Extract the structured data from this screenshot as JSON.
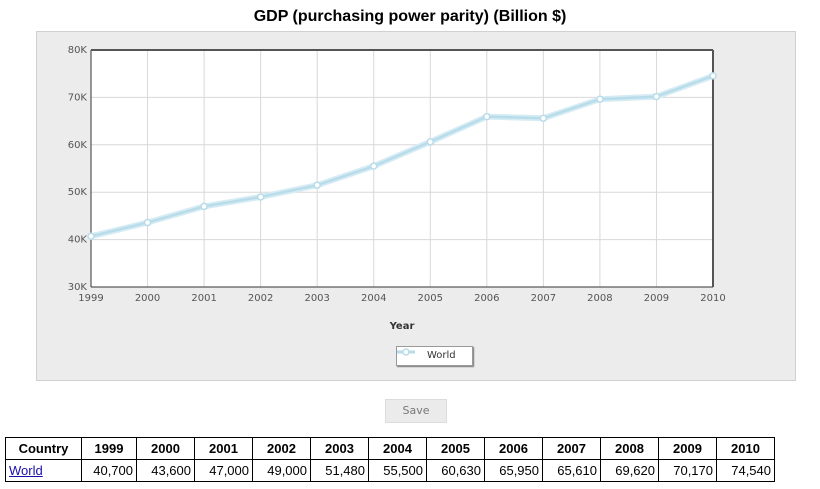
{
  "chart_title": "GDP (purchasing power parity) (Billion $)",
  "colors": {
    "series_line": "#b9dcea",
    "panel_bg": "#ececec",
    "link": "#1a0dab"
  },
  "chart_data": {
    "type": "line",
    "title": "GDP (purchasing power parity) (Billion $)",
    "xlabel": "Year",
    "ylabel": "",
    "x": [
      1999,
      2000,
      2001,
      2002,
      2003,
      2004,
      2005,
      2006,
      2007,
      2008,
      2009,
      2010
    ],
    "x_tick_labels": [
      "1999",
      "2000",
      "2001",
      "2002",
      "2003",
      "2004",
      "2005",
      "2006",
      "2007",
      "2008",
      "2009",
      "2010"
    ],
    "y_tick_labels": [
      "30K",
      "40K",
      "50K",
      "60K",
      "70K",
      "80K"
    ],
    "y_ticks": [
      30000,
      40000,
      50000,
      60000,
      70000,
      80000
    ],
    "ylim": [
      30000,
      80000
    ],
    "grid": true,
    "legend_position": "bottom-center",
    "series": [
      {
        "name": "World",
        "values": [
          40700,
          43600,
          47000,
          49000,
          51480,
          55500,
          60630,
          65950,
          65610,
          69620,
          70170,
          74540
        ]
      }
    ]
  },
  "legend": {
    "label": "World"
  },
  "save_label": "Save",
  "table": {
    "headers": [
      "Country",
      "1999",
      "2000",
      "2001",
      "2002",
      "2003",
      "2004",
      "2005",
      "2006",
      "2007",
      "2008",
      "2009",
      "2010"
    ],
    "rows": [
      {
        "country": "World",
        "values": [
          "40,700",
          "43,600",
          "47,000",
          "49,000",
          "51,480",
          "55,500",
          "60,630",
          "65,950",
          "65,610",
          "69,620",
          "70,170",
          "74,540"
        ]
      }
    ]
  }
}
